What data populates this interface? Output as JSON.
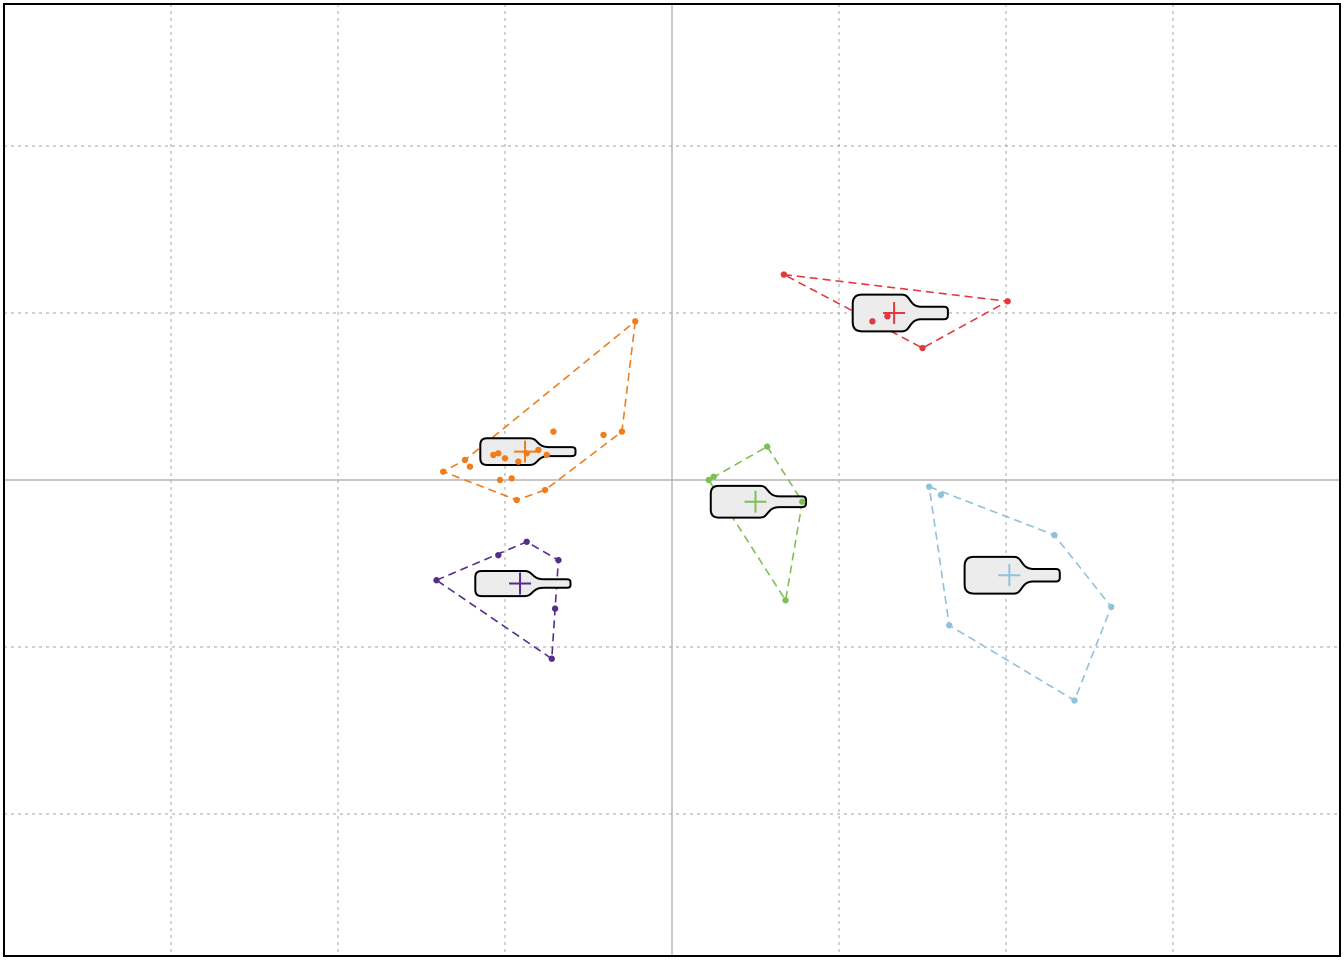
{
  "chart_data": {
    "type": "scatter",
    "title": "",
    "xlabel": "",
    "ylabel": "",
    "xlim": [
      -4,
      4
    ],
    "ylim": [
      -2.85,
      2.85
    ],
    "grid": true,
    "legend": "none",
    "colors": {
      "zero_axis": "#b3b3b3",
      "grid": "#b3b3b3",
      "frame": "#000000",
      "glyph_fill": "#ececec",
      "glyph_stroke": "#000000"
    },
    "series": [
      {
        "color": "#ef7d1a",
        "centroid": [
          -0.88,
          0.17
        ],
        "points": [
          [
            -1.37,
            0.05
          ],
          [
            -1.24,
            0.12
          ],
          [
            -1.21,
            0.08
          ],
          [
            -1.07,
            0.15
          ],
          [
            -1.04,
            0.16
          ],
          [
            -1.0,
            0.13
          ],
          [
            -0.87,
            0.16
          ],
          [
            -0.8,
            0.18
          ],
          [
            -0.92,
            0.11
          ],
          [
            -0.75,
            0.15
          ],
          [
            -0.71,
            0.29
          ],
          [
            -1.03,
            0.0
          ],
          [
            -0.96,
            0.01
          ],
          [
            -0.93,
            -0.12
          ],
          [
            -0.76,
            -0.06
          ],
          [
            -0.41,
            0.27
          ],
          [
            -0.3,
            0.29
          ],
          [
            -0.22,
            0.95
          ]
        ],
        "hull": [
          [
            -0.22,
            0.95
          ],
          [
            -0.3,
            0.29
          ],
          [
            -0.76,
            -0.06
          ],
          [
            -0.93,
            -0.12
          ],
          [
            -1.37,
            0.05
          ],
          [
            -1.24,
            0.12
          ]
        ]
      },
      {
        "color": "#e1393e",
        "centroid": [
          1.33,
          1.0
        ],
        "points": [
          [
            0.67,
            1.23
          ],
          [
            1.2,
            0.95
          ],
          [
            1.29,
            0.98
          ],
          [
            1.5,
            0.79
          ],
          [
            2.01,
            1.07
          ]
        ],
        "hull": [
          [
            0.67,
            1.23
          ],
          [
            2.01,
            1.07
          ],
          [
            1.5,
            0.79
          ],
          [
            1.2,
            0.95
          ]
        ]
      },
      {
        "color": "#7ebf55",
        "centroid": [
          0.5,
          -0.13
        ],
        "points": [
          [
            0.22,
            0.0
          ],
          [
            0.25,
            0.02
          ],
          [
            0.57,
            0.2
          ],
          [
            0.78,
            -0.13
          ],
          [
            0.68,
            -0.72
          ]
        ],
        "hull": [
          [
            0.57,
            0.2
          ],
          [
            0.78,
            -0.13
          ],
          [
            0.68,
            -0.72
          ],
          [
            0.22,
            0.0
          ]
        ]
      },
      {
        "color": "#552c8a",
        "centroid": [
          -0.91,
          -0.62
        ],
        "points": [
          [
            -1.41,
            -0.6
          ],
          [
            -1.04,
            -0.45
          ],
          [
            -0.87,
            -0.37
          ],
          [
            -0.68,
            -0.48
          ],
          [
            -0.7,
            -0.77
          ],
          [
            -0.72,
            -1.07
          ]
        ],
        "hull": [
          [
            -1.41,
            -0.6
          ],
          [
            -0.87,
            -0.37
          ],
          [
            -0.68,
            -0.48
          ],
          [
            -0.7,
            -0.77
          ],
          [
            -0.72,
            -1.07
          ]
        ]
      },
      {
        "color": "#8fc2db",
        "centroid": [
          2.02,
          -0.57
        ],
        "points": [
          [
            1.54,
            -0.04
          ],
          [
            1.61,
            -0.09
          ],
          [
            2.29,
            -0.33
          ],
          [
            2.63,
            -0.76
          ],
          [
            1.66,
            -0.87
          ],
          [
            2.41,
            -1.32
          ]
        ],
        "hull": [
          [
            1.54,
            -0.04
          ],
          [
            2.29,
            -0.33
          ],
          [
            2.63,
            -0.76
          ],
          [
            2.41,
            -1.32
          ],
          [
            1.66,
            -0.87
          ]
        ]
      }
    ],
    "glyphs": [
      {
        "center": [
          -0.88,
          0.17
        ],
        "length": 0.57,
        "height": 0.16
      },
      {
        "center": [
          1.35,
          1.0
        ],
        "length": 0.57,
        "height": 0.22
      },
      {
        "center": [
          0.5,
          -0.13
        ],
        "length": 0.57,
        "height": 0.19
      },
      {
        "center": [
          -0.91,
          -0.62
        ],
        "length": 0.57,
        "height": 0.15
      },
      {
        "center": [
          2.02,
          -0.57
        ],
        "length": 0.57,
        "height": 0.22
      }
    ]
  }
}
